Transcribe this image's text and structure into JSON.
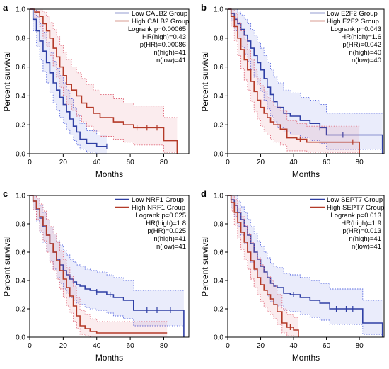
{
  "colors": {
    "low": "#2f3fa5",
    "high": "#b43a28",
    "low_ci": "#5b6be0",
    "high_ci": "#e0697a",
    "axis": "#000000"
  },
  "chart_data": [
    {
      "panel_label": "a",
      "type": "line",
      "xlabel": "Months",
      "ylabel": "Percent survival",
      "xlim": [
        0,
        95
      ],
      "ylim": [
        0,
        1.0
      ],
      "xticks": [
        "0",
        "20",
        "40",
        "60",
        "80"
      ],
      "yticks": [
        "0.0",
        "0.2",
        "0.4",
        "0.6",
        "0.8",
        "1.0"
      ],
      "legend_position": "top-right",
      "stats": [
        "Logrank p=0.00065",
        "HR(high)=0.43",
        "p(HR)=0.00086",
        "n(high)=41",
        "n(low)=41"
      ],
      "series": [
        {
          "name": "Low CALB2 Group",
          "key": "low",
          "x": [
            0,
            2,
            4,
            6,
            8,
            10,
            12,
            14,
            16,
            18,
            20,
            22,
            24,
            26,
            28,
            30,
            34,
            40,
            46
          ],
          "y": [
            1.0,
            0.93,
            0.85,
            0.78,
            0.71,
            0.63,
            0.56,
            0.49,
            0.44,
            0.39,
            0.34,
            0.29,
            0.24,
            0.19,
            0.15,
            0.1,
            0.07,
            0.05,
            0.05
          ],
          "ci_upper": [
            1.0,
            1.0,
            0.95,
            0.9,
            0.84,
            0.77,
            0.7,
            0.64,
            0.59,
            0.54,
            0.49,
            0.44,
            0.38,
            0.32,
            0.27,
            0.21,
            0.16,
            0.13,
            0.13
          ],
          "ci_lower": [
            1.0,
            0.85,
            0.74,
            0.65,
            0.57,
            0.49,
            0.42,
            0.35,
            0.3,
            0.25,
            0.21,
            0.17,
            0.13,
            0.09,
            0.06,
            0.03,
            0.01,
            0.0,
            0.0
          ],
          "censor_x": [
            46
          ]
        },
        {
          "name": "High CALB2 Group",
          "key": "high",
          "x": [
            0,
            3,
            6,
            8,
            10,
            12,
            14,
            16,
            18,
            20,
            22,
            25,
            28,
            31,
            34,
            38,
            42,
            50,
            56,
            62,
            68,
            74,
            80,
            88
          ],
          "y": [
            1.0,
            0.98,
            0.95,
            0.9,
            0.85,
            0.8,
            0.73,
            0.67,
            0.6,
            0.54,
            0.48,
            0.44,
            0.4,
            0.35,
            0.32,
            0.28,
            0.25,
            0.22,
            0.2,
            0.18,
            0.18,
            0.18,
            0.09,
            0.0
          ],
          "ci_upper": [
            1.0,
            1.0,
            1.0,
            0.98,
            0.95,
            0.91,
            0.86,
            0.81,
            0.75,
            0.7,
            0.65,
            0.6,
            0.56,
            0.52,
            0.48,
            0.44,
            0.41,
            0.38,
            0.35,
            0.33,
            0.33,
            0.33,
            0.25,
            0.25
          ],
          "ci_lower": [
            1.0,
            0.94,
            0.88,
            0.8,
            0.74,
            0.68,
            0.6,
            0.53,
            0.46,
            0.4,
            0.34,
            0.3,
            0.26,
            0.22,
            0.19,
            0.15,
            0.12,
            0.1,
            0.08,
            0.06,
            0.06,
            0.06,
            0.01,
            0.0
          ],
          "censor_x": [
            64,
            70,
            76
          ]
        }
      ]
    },
    {
      "panel_label": "b",
      "type": "line",
      "xlabel": "Months",
      "ylabel": "Percent survival",
      "xlim": [
        0,
        95
      ],
      "ylim": [
        0,
        1.0
      ],
      "xticks": [
        "0",
        "20",
        "40",
        "60",
        "80"
      ],
      "yticks": [
        "0.0",
        "0.2",
        "0.4",
        "0.6",
        "0.8",
        "1.0"
      ],
      "legend_position": "top-right",
      "stats": [
        "Logrank p=0.043",
        "HR(high)=1.6",
        "p(HR)=0.042",
        "n(high)=40",
        "n(low)=40"
      ],
      "series": [
        {
          "name": "Low E2F2 Group",
          "key": "low",
          "x": [
            0,
            2,
            4,
            6,
            8,
            10,
            12,
            14,
            16,
            18,
            20,
            22,
            24,
            26,
            28,
            30,
            34,
            38,
            44,
            50,
            56,
            60,
            66,
            72,
            80,
            94
          ],
          "y": [
            1.0,
            0.97,
            0.93,
            0.9,
            0.86,
            0.82,
            0.78,
            0.73,
            0.68,
            0.63,
            0.58,
            0.52,
            0.46,
            0.41,
            0.36,
            0.32,
            0.28,
            0.26,
            0.23,
            0.21,
            0.18,
            0.13,
            0.13,
            0.13,
            0.13,
            0.0
          ],
          "ci_upper": [
            1.0,
            1.0,
            1.0,
            0.98,
            0.96,
            0.93,
            0.9,
            0.86,
            0.82,
            0.77,
            0.73,
            0.68,
            0.63,
            0.58,
            0.53,
            0.49,
            0.44,
            0.42,
            0.39,
            0.37,
            0.34,
            0.28,
            0.28,
            0.28,
            0.28,
            0.28
          ],
          "ci_lower": [
            1.0,
            0.92,
            0.85,
            0.8,
            0.74,
            0.69,
            0.64,
            0.58,
            0.53,
            0.48,
            0.43,
            0.37,
            0.31,
            0.26,
            0.22,
            0.18,
            0.15,
            0.13,
            0.11,
            0.09,
            0.07,
            0.03,
            0.03,
            0.03,
            0.03,
            0.0
          ],
          "censor_x": [
            56,
            70
          ]
        },
        {
          "name": "High E2F2 Group",
          "key": "high",
          "x": [
            0,
            2,
            4,
            6,
            8,
            10,
            12,
            14,
            16,
            18,
            20,
            22,
            24,
            26,
            28,
            32,
            36,
            42,
            48,
            56,
            64,
            72,
            80
          ],
          "y": [
            1.0,
            0.95,
            0.88,
            0.8,
            0.72,
            0.65,
            0.58,
            0.5,
            0.43,
            0.37,
            0.32,
            0.28,
            0.25,
            0.22,
            0.2,
            0.17,
            0.11,
            0.1,
            0.08,
            0.08,
            0.08,
            0.08,
            0.0
          ],
          "ci_upper": [
            1.0,
            1.0,
            0.97,
            0.91,
            0.85,
            0.79,
            0.72,
            0.65,
            0.58,
            0.52,
            0.47,
            0.43,
            0.39,
            0.36,
            0.33,
            0.3,
            0.23,
            0.21,
            0.19,
            0.19,
            0.19,
            0.19,
            0.19
          ],
          "ci_lower": [
            1.0,
            0.88,
            0.78,
            0.68,
            0.59,
            0.51,
            0.44,
            0.36,
            0.29,
            0.24,
            0.19,
            0.15,
            0.13,
            0.1,
            0.08,
            0.06,
            0.02,
            0.02,
            0.01,
            0.01,
            0.01,
            0.01,
            0.0
          ],
          "censor_x": [
            44,
            76
          ]
        }
      ]
    },
    {
      "panel_label": "c",
      "type": "line",
      "xlabel": "Months",
      "ylabel": "Percent survival",
      "xlim": [
        0,
        95
      ],
      "ylim": [
        0,
        1.0
      ],
      "xticks": [
        "0",
        "20",
        "40",
        "60",
        "80"
      ],
      "yticks": [
        "0.0",
        "0.2",
        "0.4",
        "0.6",
        "0.8",
        "1.0"
      ],
      "legend_position": "top-right",
      "stats": [
        "Logrank p=0.025",
        "HR(high)=1.8",
        "p(HR)=0.025",
        "n(high)=41",
        "n(low)=41"
      ],
      "series": [
        {
          "name": "Low NRF1 Group",
          "key": "low",
          "x": [
            0,
            2,
            4,
            6,
            8,
            10,
            12,
            14,
            16,
            18,
            20,
            22,
            24,
            26,
            28,
            30,
            33,
            36,
            40,
            46,
            50,
            56,
            62,
            70,
            80,
            92
          ],
          "y": [
            1.0,
            0.96,
            0.9,
            0.84,
            0.78,
            0.72,
            0.66,
            0.6,
            0.55,
            0.51,
            0.47,
            0.44,
            0.41,
            0.39,
            0.37,
            0.36,
            0.34,
            0.33,
            0.32,
            0.3,
            0.28,
            0.26,
            0.19,
            0.19,
            0.19,
            0.0
          ],
          "ci_upper": [
            1.0,
            1.0,
            0.98,
            0.93,
            0.88,
            0.83,
            0.78,
            0.73,
            0.68,
            0.65,
            0.61,
            0.58,
            0.55,
            0.53,
            0.51,
            0.5,
            0.48,
            0.47,
            0.46,
            0.44,
            0.42,
            0.4,
            0.33,
            0.33,
            0.33,
            0.33
          ],
          "ci_lower": [
            1.0,
            0.9,
            0.82,
            0.74,
            0.67,
            0.6,
            0.54,
            0.48,
            0.42,
            0.38,
            0.34,
            0.31,
            0.28,
            0.26,
            0.24,
            0.23,
            0.21,
            0.2,
            0.19,
            0.17,
            0.15,
            0.13,
            0.08,
            0.08,
            0.08,
            0.0
          ],
          "censor_x": [
            40,
            48,
            70,
            76,
            84
          ]
        },
        {
          "name": "High NRF1 Group",
          "key": "high",
          "x": [
            0,
            2,
            4,
            6,
            8,
            10,
            12,
            14,
            16,
            18,
            20,
            22,
            24,
            26,
            28,
            30,
            33,
            36,
            40,
            50,
            60,
            70,
            82
          ],
          "y": [
            1.0,
            0.96,
            0.91,
            0.85,
            0.79,
            0.72,
            0.66,
            0.6,
            0.54,
            0.47,
            0.41,
            0.35,
            0.29,
            0.22,
            0.15,
            0.08,
            0.06,
            0.04,
            0.03,
            0.03,
            0.03,
            0.03,
            0.03
          ],
          "ci_upper": [
            1.0,
            1.0,
            0.98,
            0.94,
            0.89,
            0.83,
            0.78,
            0.73,
            0.67,
            0.61,
            0.55,
            0.49,
            0.43,
            0.36,
            0.28,
            0.19,
            0.16,
            0.13,
            0.11,
            0.11,
            0.11,
            0.11,
            0.11
          ],
          "ci_lower": [
            1.0,
            0.9,
            0.83,
            0.75,
            0.68,
            0.6,
            0.53,
            0.47,
            0.41,
            0.34,
            0.28,
            0.22,
            0.17,
            0.11,
            0.06,
            0.02,
            0.01,
            0.0,
            0.0,
            0.0,
            0.0,
            0.0,
            0.0
          ],
          "censor_x": []
        }
      ]
    },
    {
      "panel_label": "d",
      "type": "line",
      "xlabel": "Months",
      "ylabel": "Percent survival",
      "xlim": [
        0,
        95
      ],
      "ylim": [
        0,
        1.0
      ],
      "xticks": [
        "0",
        "20",
        "40",
        "60",
        "80"
      ],
      "yticks": [
        "0.0",
        "0.2",
        "0.4",
        "0.6",
        "0.8",
        "1.0"
      ],
      "legend_position": "top-right",
      "stats": [
        "Logrank p=0.013",
        "HR(high)=1.9",
        "p(HR)=0.013",
        "n(high)=41",
        "n(low)=41"
      ],
      "series": [
        {
          "name": "Low SEPT7 Group",
          "key": "low",
          "x": [
            0,
            2,
            4,
            6,
            8,
            10,
            12,
            14,
            16,
            18,
            20,
            22,
            24,
            26,
            28,
            30,
            34,
            38,
            44,
            50,
            56,
            62,
            70,
            82,
            94
          ],
          "y": [
            1.0,
            0.97,
            0.93,
            0.88,
            0.83,
            0.78,
            0.72,
            0.66,
            0.6,
            0.55,
            0.5,
            0.46,
            0.42,
            0.38,
            0.36,
            0.35,
            0.31,
            0.3,
            0.28,
            0.26,
            0.24,
            0.2,
            0.2,
            0.1,
            0.0
          ],
          "ci_upper": [
            1.0,
            1.0,
            1.0,
            0.96,
            0.92,
            0.88,
            0.83,
            0.78,
            0.73,
            0.68,
            0.64,
            0.6,
            0.56,
            0.52,
            0.5,
            0.49,
            0.45,
            0.44,
            0.42,
            0.4,
            0.38,
            0.34,
            0.34,
            0.26,
            0.26
          ],
          "ci_lower": [
            1.0,
            0.91,
            0.85,
            0.78,
            0.72,
            0.66,
            0.6,
            0.53,
            0.47,
            0.42,
            0.37,
            0.33,
            0.29,
            0.25,
            0.23,
            0.22,
            0.19,
            0.18,
            0.16,
            0.14,
            0.12,
            0.09,
            0.09,
            0.02,
            0.0
          ],
          "censor_x": [
            40,
            66,
            72,
            76
          ]
        },
        {
          "name": "High SEPT7 Group",
          "key": "high",
          "x": [
            0,
            2,
            4,
            6,
            8,
            10,
            12,
            14,
            16,
            18,
            20,
            22,
            24,
            26,
            28,
            30,
            33,
            36,
            40,
            43
          ],
          "y": [
            1.0,
            0.95,
            0.88,
            0.81,
            0.74,
            0.67,
            0.6,
            0.54,
            0.48,
            0.42,
            0.37,
            0.33,
            0.3,
            0.27,
            0.23,
            0.18,
            0.1,
            0.07,
            0.05,
            0.0
          ],
          "ci_upper": [
            1.0,
            1.0,
            0.97,
            0.91,
            0.85,
            0.79,
            0.73,
            0.67,
            0.61,
            0.56,
            0.51,
            0.47,
            0.43,
            0.4,
            0.36,
            0.3,
            0.2,
            0.16,
            0.14,
            0.14
          ],
          "ci_lower": [
            1.0,
            0.89,
            0.79,
            0.7,
            0.62,
            0.55,
            0.48,
            0.41,
            0.35,
            0.3,
            0.25,
            0.21,
            0.18,
            0.16,
            0.13,
            0.09,
            0.03,
            0.01,
            0.0,
            0.0
          ],
          "censor_x": [
            38
          ]
        }
      ]
    }
  ]
}
